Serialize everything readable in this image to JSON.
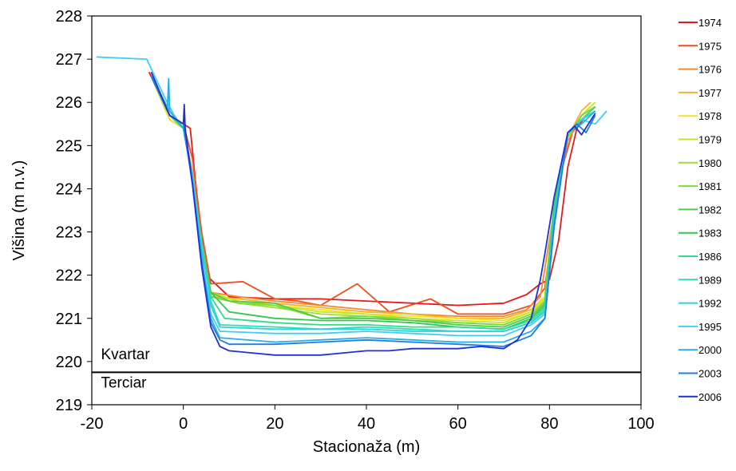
{
  "chart_data": {
    "type": "line",
    "title": "",
    "xlabel": "Stacionaža (m)",
    "ylabel": "Višina (m n.v.)",
    "xlim": [
      -20,
      100
    ],
    "ylim": [
      219,
      228
    ],
    "xticks": [
      -20,
      0,
      20,
      40,
      60,
      80,
      100
    ],
    "yticks": [
      219,
      220,
      221,
      222,
      223,
      224,
      225,
      226,
      227,
      228
    ],
    "grid": false,
    "legend_position": "right",
    "annotations": [
      {
        "text": "Kvartar",
        "x": -18,
        "y": 220.05
      },
      {
        "text": "Terciar",
        "x": -18,
        "y": 219.4
      }
    ],
    "boundary_line": {
      "y": 219.75
    },
    "series": [
      {
        "name": "1974",
        "color": "#e31a1c",
        "x": [
          -7.5,
          -3,
          0,
          1.5,
          3,
          5,
          10,
          20,
          30,
          40,
          50,
          60,
          70,
          75,
          78,
          80,
          82,
          84,
          86,
          88,
          90
        ],
        "y": [
          226.7,
          225.7,
          225.5,
          225.4,
          223.8,
          222.0,
          221.5,
          221.45,
          221.45,
          221.4,
          221.35,
          221.3,
          221.35,
          221.55,
          221.8,
          221.9,
          222.8,
          224.5,
          225.4,
          225.7,
          225.9
        ]
      },
      {
        "name": "1975",
        "color": "#f04e1e",
        "x": [
          -7,
          -3,
          0,
          2,
          4,
          6,
          13,
          20,
          25,
          30,
          38,
          45,
          54,
          60,
          70,
          76,
          79,
          82,
          85,
          88,
          90
        ],
        "y": [
          226.7,
          225.7,
          225.5,
          224.7,
          223.0,
          221.8,
          221.85,
          221.45,
          221.4,
          221.3,
          221.8,
          221.15,
          221.45,
          221.1,
          221.1,
          221.3,
          221.7,
          224.2,
          225.3,
          225.7,
          225.9
        ]
      },
      {
        "name": "1976",
        "color": "#f08a30",
        "x": [
          -7,
          -3,
          0,
          2,
          4,
          6,
          12,
          20,
          30,
          40,
          50,
          60,
          70,
          75,
          78,
          81,
          84,
          87,
          89
        ],
        "y": [
          226.6,
          225.6,
          225.4,
          224.4,
          222.8,
          221.6,
          221.5,
          221.4,
          221.3,
          221.2,
          221.1,
          221.05,
          221.05,
          221.2,
          221.5,
          223.5,
          225.1,
          225.7,
          225.9
        ]
      },
      {
        "name": "1977",
        "color": "#f0b428",
        "x": [
          -7,
          -3,
          0,
          2,
          4,
          6,
          12,
          20,
          30,
          40,
          50,
          60,
          70,
          76,
          79,
          81,
          84,
          87,
          89
        ],
        "y": [
          226.6,
          225.6,
          225.4,
          224.3,
          222.6,
          221.5,
          221.45,
          221.35,
          221.25,
          221.15,
          221.1,
          221.0,
          221.0,
          221.2,
          221.5,
          223.6,
          225.2,
          225.8,
          226.0
        ]
      },
      {
        "name": "1978",
        "color": "#f0e028",
        "x": [
          -7,
          -3,
          0,
          2,
          4,
          6,
          12,
          20,
          30,
          40,
          50,
          60,
          70,
          76,
          79,
          81,
          84,
          87,
          90
        ],
        "y": [
          226.6,
          225.6,
          225.4,
          224.3,
          222.6,
          221.55,
          221.4,
          221.3,
          221.2,
          221.1,
          221.05,
          221.0,
          220.95,
          221.15,
          221.5,
          223.7,
          225.2,
          225.7,
          225.9
        ]
      },
      {
        "name": "1979",
        "color": "#c8e628",
        "x": [
          -7,
          -3,
          0,
          2,
          4,
          6,
          12,
          20,
          30,
          40,
          50,
          60,
          70,
          76,
          79,
          81,
          84,
          87,
          90
        ],
        "y": [
          226.6,
          225.7,
          225.4,
          224.3,
          222.6,
          221.6,
          221.4,
          221.3,
          221.15,
          221.1,
          221.0,
          220.95,
          220.9,
          221.15,
          221.45,
          223.7,
          225.2,
          225.7,
          226.0
        ]
      },
      {
        "name": "1980",
        "color": "#a0dc3c",
        "x": [
          -7,
          -3,
          0,
          2,
          4,
          6,
          12,
          20,
          30,
          40,
          50,
          60,
          70,
          76,
          79,
          81,
          84,
          87,
          90
        ],
        "y": [
          226.6,
          225.7,
          225.4,
          224.3,
          222.6,
          221.5,
          221.35,
          221.25,
          221.1,
          221.05,
          221.0,
          220.9,
          220.85,
          221.1,
          221.4,
          223.6,
          225.2,
          225.7,
          225.9
        ]
      },
      {
        "name": "1981",
        "color": "#78dc3c",
        "x": [
          -7,
          -3,
          0,
          2,
          4,
          6,
          12,
          20,
          30,
          40,
          50,
          60,
          70,
          76,
          79,
          81,
          84,
          87,
          90
        ],
        "y": [
          226.6,
          225.7,
          225.4,
          224.3,
          222.7,
          221.5,
          221.35,
          221.3,
          221.0,
          221.05,
          220.95,
          220.9,
          220.85,
          221.1,
          221.4,
          223.6,
          225.2,
          225.7,
          225.9
        ]
      },
      {
        "name": "1982",
        "color": "#50c850",
        "x": [
          -7,
          -3,
          0,
          2,
          4,
          6,
          10,
          20,
          30,
          40,
          50,
          60,
          70,
          76,
          79,
          81,
          84,
          87,
          90
        ],
        "y": [
          226.6,
          225.7,
          225.4,
          224.3,
          222.8,
          221.6,
          221.4,
          221.35,
          221.0,
          221.0,
          220.95,
          220.85,
          220.8,
          221.05,
          221.35,
          223.6,
          225.3,
          225.6,
          225.8
        ]
      },
      {
        "name": "1983",
        "color": "#32c850",
        "x": [
          -7,
          -3,
          0,
          2,
          4,
          6,
          10,
          20,
          30,
          40,
          50,
          60,
          70,
          76,
          79,
          81,
          84,
          87,
          90
        ],
        "y": [
          226.6,
          225.7,
          225.4,
          224.2,
          222.5,
          221.6,
          221.15,
          221.0,
          220.95,
          220.95,
          220.9,
          220.8,
          220.75,
          221.0,
          221.3,
          223.5,
          225.3,
          225.6,
          225.8
        ]
      },
      {
        "name": "1986",
        "color": "#30dc8c",
        "x": [
          -7,
          -3,
          0,
          2,
          4,
          6,
          9,
          20,
          30,
          40,
          50,
          60,
          70,
          76,
          79,
          81,
          84,
          87,
          90
        ],
        "y": [
          226.6,
          225.7,
          225.4,
          224.3,
          222.7,
          221.5,
          221.0,
          220.9,
          220.85,
          220.85,
          220.8,
          220.8,
          220.75,
          220.95,
          221.25,
          223.4,
          225.3,
          225.6,
          225.9
        ]
      },
      {
        "name": "1989",
        "color": "#30dcb4",
        "x": [
          -7,
          -3,
          0,
          2,
          4,
          6,
          8,
          20,
          30,
          40,
          50,
          60,
          70,
          76,
          79,
          81,
          84,
          87,
          90
        ],
        "y": [
          226.6,
          225.8,
          225.4,
          224.3,
          222.7,
          221.4,
          220.85,
          220.8,
          220.75,
          220.8,
          220.75,
          220.7,
          220.7,
          220.9,
          221.2,
          223.4,
          225.3,
          225.6,
          225.8
        ]
      },
      {
        "name": "1992",
        "color": "#30d2dc",
        "x": [
          -7,
          -3,
          0,
          2,
          4,
          6,
          8,
          20,
          30,
          40,
          50,
          60,
          70,
          76,
          79,
          81,
          84,
          87,
          90
        ],
        "y": [
          226.6,
          225.8,
          225.4,
          224.3,
          222.7,
          221.3,
          220.8,
          220.75,
          220.75,
          220.75,
          220.7,
          220.7,
          220.7,
          220.9,
          221.15,
          223.3,
          225.3,
          225.6,
          225.8
        ]
      },
      {
        "name": "1995",
        "color": "#3cd0f0",
        "x": [
          -19,
          -8,
          -4,
          -2,
          0,
          2,
          4,
          6,
          8,
          20,
          30,
          40,
          50,
          60,
          70,
          76,
          79,
          81,
          84,
          87,
          90,
          92.5
        ],
        "y": [
          227.05,
          227.0,
          226.1,
          225.7,
          225.4,
          224.2,
          222.4,
          221.1,
          220.7,
          220.65,
          220.65,
          220.7,
          220.65,
          220.6,
          220.6,
          220.85,
          221.1,
          223.2,
          225.3,
          225.6,
          225.5,
          225.8
        ]
      },
      {
        "name": "2000",
        "color": "#28aee6",
        "x": [
          -7,
          -3.5,
          -3.2,
          -3,
          0,
          2,
          4,
          6,
          8,
          20,
          30,
          40,
          50,
          60,
          70,
          76,
          79,
          81,
          84,
          87,
          90
        ],
        "y": [
          226.6,
          225.8,
          226.55,
          225.8,
          225.4,
          224.2,
          222.4,
          221.0,
          220.55,
          220.45,
          220.5,
          220.55,
          220.5,
          220.45,
          220.45,
          220.7,
          221.0,
          223.2,
          225.3,
          225.5,
          225.8
        ]
      },
      {
        "name": "2003",
        "color": "#1e7ee6",
        "x": [
          -7,
          -3,
          0,
          2,
          4,
          6,
          8,
          10,
          20,
          30,
          40,
          50,
          60,
          70,
          76,
          79,
          81,
          84,
          86,
          88,
          90
        ],
        "y": [
          226.6,
          225.7,
          225.5,
          224.1,
          222.3,
          220.9,
          220.5,
          220.4,
          220.4,
          220.45,
          220.5,
          220.45,
          220.4,
          220.35,
          220.6,
          221.0,
          223.1,
          225.3,
          225.5,
          225.3,
          225.7
        ]
      },
      {
        "name": "2006",
        "color": "#1e32d2",
        "x": [
          -7,
          -3,
          0,
          0.2,
          0.4,
          2,
          4,
          6,
          8,
          10,
          15,
          20,
          25,
          30,
          35,
          40,
          45,
          50,
          55,
          60,
          65,
          70,
          73,
          76,
          78,
          79,
          81,
          84,
          85.5,
          87,
          90
        ],
        "y": [
          226.7,
          225.7,
          225.5,
          225.95,
          225.4,
          224.1,
          222.2,
          220.8,
          220.35,
          220.25,
          220.2,
          220.15,
          220.15,
          220.15,
          220.2,
          220.25,
          220.25,
          220.3,
          220.3,
          220.3,
          220.35,
          220.3,
          220.5,
          221.0,
          221.9,
          222.5,
          223.8,
          225.3,
          225.45,
          225.25,
          225.75
        ]
      }
    ]
  }
}
